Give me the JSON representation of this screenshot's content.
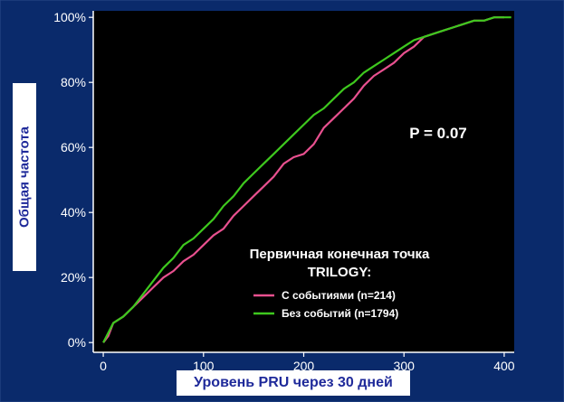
{
  "chart_data": {
    "type": "line",
    "xlabel": "Уровень PRU через 30 дней",
    "ylabel": "Общая частота",
    "xlim": [
      -10,
      410
    ],
    "ylim": [
      -3,
      102
    ],
    "x_ticks": [
      0,
      100,
      200,
      300,
      400
    ],
    "y_ticks": [
      0,
      20,
      40,
      60,
      80,
      100
    ],
    "y_tick_labels": [
      "0%",
      "20%",
      "40%",
      "60%",
      "80%",
      "100%"
    ],
    "grid": false,
    "annotation": "P = 0.07",
    "legend": {
      "title": "Первичная конечная точка TRILOGY:",
      "title_lines": [
        "Первичная конечная точка",
        "TRILOGY:"
      ],
      "position": "bottom-right"
    },
    "series": [
      {
        "name": "С событиями (n=214)",
        "color": "#e8508f",
        "x": [
          0,
          5,
          10,
          20,
          30,
          40,
          50,
          60,
          70,
          80,
          90,
          100,
          110,
          120,
          130,
          140,
          150,
          160,
          170,
          180,
          190,
          200,
          210,
          220,
          230,
          240,
          250,
          260,
          270,
          280,
          290,
          300,
          310,
          320,
          330,
          340,
          350,
          360,
          370,
          380,
          390,
          400
        ],
        "y": [
          0,
          2,
          6,
          8,
          11,
          14,
          17,
          20,
          22,
          25,
          27,
          30,
          33,
          35,
          39,
          42,
          45,
          48,
          51,
          55,
          57,
          58,
          61,
          66,
          69,
          72,
          75,
          79,
          82,
          84,
          86,
          89,
          91,
          94,
          95,
          96,
          97,
          98,
          99,
          99,
          100,
          100
        ]
      },
      {
        "name": "Без событий (n=1794)",
        "color": "#3ec81e",
        "x": [
          0,
          5,
          10,
          20,
          30,
          40,
          50,
          60,
          70,
          80,
          90,
          100,
          110,
          120,
          130,
          140,
          150,
          160,
          170,
          180,
          190,
          200,
          210,
          220,
          230,
          240,
          250,
          260,
          270,
          280,
          290,
          300,
          310,
          320,
          330,
          340,
          350,
          360,
          370,
          380,
          390,
          400,
          407
        ],
        "y": [
          0,
          3,
          6,
          8,
          11,
          15,
          19,
          23,
          26,
          30,
          32,
          35,
          38,
          42,
          45,
          49,
          52,
          55,
          58,
          61,
          64,
          67,
          70,
          72,
          75,
          78,
          80,
          83,
          85,
          87,
          89,
          91,
          93,
          94,
          95,
          96,
          97,
          98,
          99,
          99,
          100,
          100,
          100
        ]
      }
    ]
  }
}
